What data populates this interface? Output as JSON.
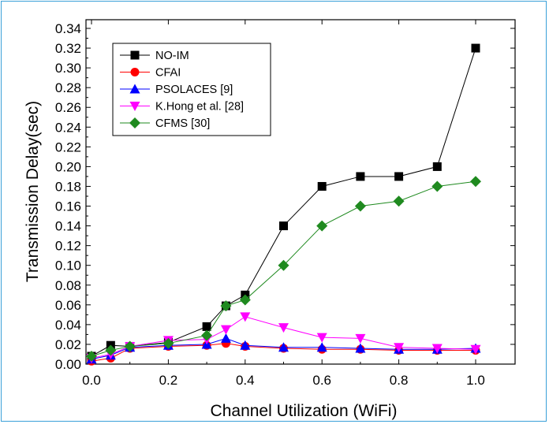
{
  "chart_data": {
    "type": "line",
    "title": "",
    "xlabel": "Channel Utilization (WiFi)",
    "ylabel": "Transmission Delay(sec)",
    "xlim": [
      0.0,
      1.0
    ],
    "ylim": [
      0.0,
      0.34
    ],
    "x_ticks": [
      "0.0",
      "0.2",
      "0.4",
      "0.6",
      "0.8",
      "1.0"
    ],
    "y_ticks": [
      "0.00",
      "0.02",
      "0.04",
      "0.06",
      "0.08",
      "0.10",
      "0.12",
      "0.14",
      "0.16",
      "0.18",
      "0.20",
      "0.22",
      "0.24",
      "0.26",
      "0.28",
      "0.30",
      "0.32",
      "0.34"
    ],
    "grid": false,
    "legend_position": "top-left",
    "series": [
      {
        "name": "NO-IM",
        "color": "#000000",
        "marker": "square",
        "x": [
          0.0,
          0.05,
          0.1,
          0.2,
          0.3,
          0.35,
          0.4,
          0.5,
          0.6,
          0.7,
          0.8,
          0.9,
          1.0
        ],
        "y": [
          0.008,
          0.019,
          0.018,
          0.022,
          0.038,
          0.059,
          0.07,
          0.14,
          0.18,
          0.19,
          0.19,
          0.2,
          0.32
        ]
      },
      {
        "name": "CFAI",
        "color": "#ff0000",
        "marker": "circle",
        "x": [
          0.0,
          0.05,
          0.1,
          0.2,
          0.3,
          0.35,
          0.4,
          0.5,
          0.6,
          0.7,
          0.8,
          0.9,
          1.0
        ],
        "y": [
          0.003,
          0.006,
          0.016,
          0.018,
          0.019,
          0.021,
          0.018,
          0.016,
          0.015,
          0.015,
          0.014,
          0.014,
          0.014
        ]
      },
      {
        "name": "PSOLACES [9]",
        "color": "#0000ff",
        "marker": "triangle-up",
        "x": [
          0.0,
          0.05,
          0.1,
          0.2,
          0.3,
          0.35,
          0.4,
          0.5,
          0.6,
          0.7,
          0.8,
          0.9,
          1.0
        ],
        "y": [
          0.005,
          0.009,
          0.017,
          0.019,
          0.02,
          0.026,
          0.019,
          0.017,
          0.017,
          0.016,
          0.015,
          0.015,
          0.016
        ]
      },
      {
        "name": "K.Hong et al. [28]",
        "color": "#ff00ff",
        "marker": "triangle-down",
        "x": [
          0.0,
          0.05,
          0.1,
          0.2,
          0.3,
          0.35,
          0.4,
          0.5,
          0.6,
          0.7,
          0.8,
          0.9,
          1.0
        ],
        "y": [
          0.006,
          0.01,
          0.018,
          0.024,
          0.025,
          0.035,
          0.048,
          0.037,
          0.027,
          0.026,
          0.017,
          0.016,
          0.015
        ]
      },
      {
        "name": "CFMS [30]",
        "color": "#1f8a1f",
        "marker": "diamond",
        "x": [
          0.0,
          0.05,
          0.1,
          0.2,
          0.3,
          0.35,
          0.4,
          0.5,
          0.6,
          0.7,
          0.8,
          0.9,
          1.0
        ],
        "y": [
          0.008,
          0.014,
          0.018,
          0.021,
          0.029,
          0.059,
          0.065,
          0.1,
          0.14,
          0.16,
          0.165,
          0.18,
          0.185
        ]
      }
    ]
  }
}
